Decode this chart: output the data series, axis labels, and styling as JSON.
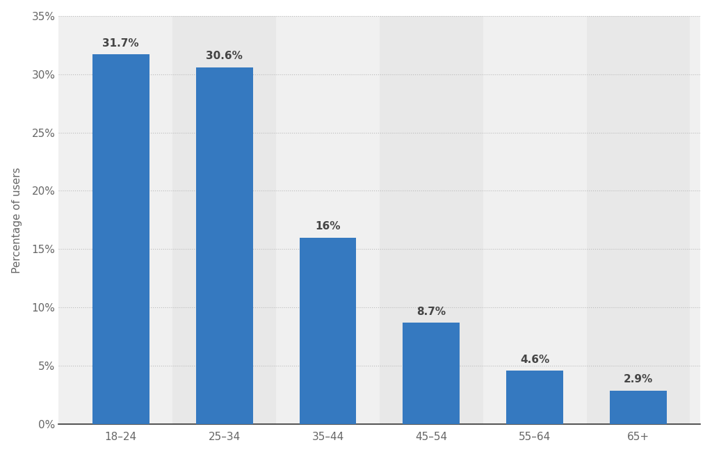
{
  "categories": [
    "18–24",
    "25–34",
    "35–44",
    "45–54",
    "55–64",
    "65+"
  ],
  "values": [
    31.7,
    30.6,
    16.0,
    8.7,
    4.6,
    2.9
  ],
  "labels": [
    "31.7%",
    "30.6%",
    "16%",
    "8.7%",
    "4.6%",
    "2.9%"
  ],
  "bar_color": "#3579c0",
  "background_color": "#ffffff",
  "plot_bg_color": "#f0f0f0",
  "col_band_color": "#e8e8e8",
  "ylabel": "Percentage of users",
  "ylim": [
    0,
    35
  ],
  "yticks": [
    0,
    5,
    10,
    15,
    20,
    25,
    30,
    35
  ],
  "ylabel_fontsize": 11,
  "tick_label_fontsize": 11,
  "value_label_fontsize": 11,
  "bar_width": 0.55,
  "grid_color": "#bbbbbb",
  "axis_color": "#333333",
  "text_color": "#666666",
  "label_text_color": "#444444"
}
